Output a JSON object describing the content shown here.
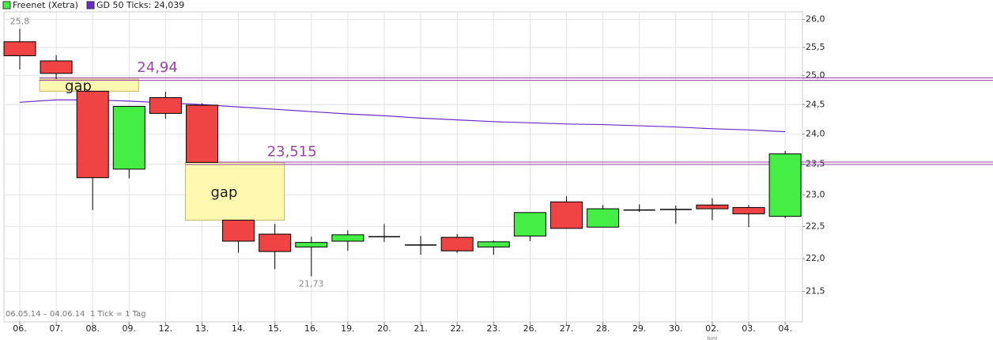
{
  "chart_data": {
    "type": "candlestick",
    "categories": [
      "06.",
      "07.",
      "08.",
      "09.",
      "12.",
      "13.",
      "14.",
      "15.",
      "16.",
      "19.",
      "20.",
      "21.",
      "22.",
      "23.",
      "26.",
      "27.",
      "28.",
      "29.",
      "30.",
      "02.",
      "03.",
      "04."
    ],
    "candles": {
      "name": "Freenet (Xetra)",
      "up_color": "#44ee44",
      "down_color": "#f04444",
      "open": [
        25.6,
        25.26,
        24.73,
        23.42,
        24.62,
        24.49,
        22.6,
        22.38,
        22.18,
        22.27,
        22.34,
        22.21,
        22.33,
        22.18,
        22.35,
        22.89,
        22.49,
        22.76,
        22.77,
        22.84,
        22.8,
        22.66
      ],
      "high": [
        25.83,
        25.36,
        24.73,
        24.47,
        24.72,
        24.52,
        22.6,
        22.54,
        22.34,
        22.44,
        22.54,
        22.35,
        22.38,
        22.28,
        22.72,
        22.98,
        22.84,
        22.85,
        22.83,
        22.95,
        22.84,
        23.72
      ],
      "low": [
        25.11,
        24.94,
        22.76,
        23.27,
        24.26,
        23.53,
        22.09,
        21.84,
        21.73,
        22.12,
        22.26,
        22.06,
        22.09,
        22.06,
        22.27,
        22.47,
        22.49,
        22.73,
        22.54,
        22.6,
        22.49,
        22.63
      ],
      "close": [
        25.35,
        25.04,
        23.28,
        24.47,
        24.35,
        23.53,
        22.27,
        22.11,
        22.25,
        22.37,
        22.34,
        22.21,
        22.12,
        22.26,
        22.72,
        22.47,
        22.78,
        22.76,
        22.77,
        22.78,
        22.7,
        23.67
      ]
    },
    "moving_average": {
      "name": "GD 50 Ticks: 24,039",
      "color": "#6a2bc8",
      "values": [
        24.54,
        24.58,
        24.58,
        24.56,
        24.53,
        24.5,
        24.46,
        24.42,
        24.38,
        24.34,
        24.31,
        24.27,
        24.24,
        24.21,
        24.19,
        24.17,
        24.16,
        24.14,
        24.12,
        24.09,
        24.07,
        24.04
      ]
    },
    "levels": [
      {
        "value": 24.94,
        "label": "24,94"
      },
      {
        "value": 23.515,
        "label": "23,515"
      }
    ],
    "level_color": "#9944aa",
    "gaps": [
      {
        "label": "gap",
        "top": 24.94,
        "bottom": 24.73,
        "start": "07.",
        "end": "09."
      },
      {
        "label": "gap",
        "top": 23.53,
        "bottom": 22.6,
        "start": "13.",
        "end": "15."
      }
    ],
    "annotations": [
      {
        "text": "25,8",
        "value": 25.83,
        "category": "06."
      },
      {
        "text": "21,73",
        "value": 21.73,
        "category": "16."
      }
    ],
    "period": "06.05.14 – 04.06.14",
    "tick_note": "1 Tick = 1 Tag",
    "month_label": "Juni",
    "log": true,
    "grid": true,
    "ylim": [
      21.05,
      26.14
    ],
    "yticks": [
      {
        "value": 21.5,
        "label": "21,5"
      },
      {
        "value": 22,
        "label": "22,0"
      },
      {
        "value": 22.5,
        "label": "22,5"
      },
      {
        "value": 23,
        "label": "23,0"
      },
      {
        "value": 23.5,
        "label": "23,5"
      },
      {
        "value": 24,
        "label": "24,0"
      },
      {
        "value": 24.5,
        "label": "24,5"
      },
      {
        "value": 25,
        "label": "25,0"
      },
      {
        "value": 25.5,
        "label": "25,5"
      },
      {
        "value": 26,
        "label": "26,0"
      }
    ]
  }
}
